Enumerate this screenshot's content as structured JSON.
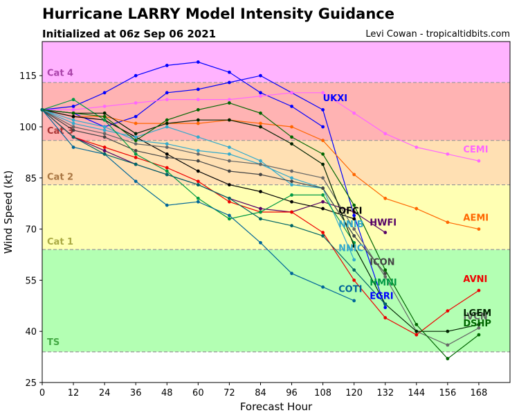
{
  "header": {
    "title": "Hurricane LARRY Model Intensity Guidance",
    "subtitle": "Initialized at 06z Sep 06 2021",
    "credit": "Levi Cowan - tropicaltidbits.com"
  },
  "chart_data": {
    "type": "line",
    "title": "Hurricane LARRY Model Intensity Guidance",
    "subtitle": "Initialized at 06z Sep 06 2021",
    "xlabel": "Forecast Hour",
    "ylabel": "Wind Speed (kt)",
    "xlim": [
      0,
      180
    ],
    "ylim": [
      25,
      125
    ],
    "xticks": [
      0,
      12,
      24,
      36,
      48,
      60,
      72,
      84,
      96,
      108,
      120,
      132,
      144,
      156,
      168
    ],
    "yticks": [
      25,
      40,
      55,
      70,
      85,
      100,
      115
    ],
    "grid": false,
    "legend": "none",
    "bands": [
      {
        "label": "TS",
        "min": 34,
        "max": 64,
        "color": "#b3ffb3",
        "label_color": "#44aa44",
        "label_y": 37
      },
      {
        "label": "Cat 1",
        "min": 64,
        "max": 83,
        "color": "#ffffb3",
        "label_color": "#aaaa44",
        "label_y": 66.5
      },
      {
        "label": "Cat 2",
        "min": 83,
        "max": 96,
        "color": "#ffe0b3",
        "label_color": "#aa7744",
        "label_y": 85.5
      },
      {
        "label": "Cat 3",
        "min": 96,
        "max": 113,
        "color": "#ffb3b3",
        "label_color": "#aa3333",
        "label_y": 99
      },
      {
        "label": "Cat 4",
        "min": 113,
        "max": 125,
        "color": "#ffb3ff",
        "label_color": "#aa44aa",
        "label_y": 116
      }
    ],
    "series": [
      {
        "name": "UKXI",
        "color": "#0000ff",
        "x": [
          0,
          12,
          24,
          36,
          48,
          60,
          72,
          84,
          96,
          108
        ],
        "y": [
          105,
          106,
          110,
          115,
          118,
          119,
          116,
          110,
          106,
          100
        ],
        "label_x": 108,
        "label_y": 107.5
      },
      {
        "name": "EGRI",
        "color": "#0000ff",
        "x": [
          0,
          12,
          24,
          36,
          48,
          60,
          72,
          84,
          96,
          108,
          120,
          132
        ],
        "y": [
          105,
          104,
          100,
          103,
          110,
          111,
          113,
          115,
          110,
          105,
          74,
          47
        ],
        "label_x": 126,
        "label_y": 49.5
      },
      {
        "name": "CEMI",
        "color": "#ff66ff",
        "x": [
          0,
          12,
          24,
          36,
          48,
          60,
          72,
          84,
          96,
          108,
          120,
          132,
          144,
          156,
          168
        ],
        "y": [
          105,
          105,
          106,
          107,
          108,
          108,
          108,
          109,
          110,
          110,
          104,
          98,
          94,
          92,
          90
        ],
        "label_x": 162,
        "label_y": 92.5
      },
      {
        "name": "AEMI",
        "color": "#ff6600",
        "x": [
          0,
          12,
          24,
          36,
          48,
          60,
          72,
          84,
          96,
          108,
          120,
          132,
          144,
          156,
          168
        ],
        "y": [
          105,
          103,
          103,
          101,
          101,
          101,
          102,
          101,
          100,
          96,
          86,
          79,
          76,
          72,
          70
        ],
        "label_x": 162,
        "label_y": 72.5
      },
      {
        "name": "HWFI",
        "color": "#550066",
        "x": [
          0,
          12,
          24,
          36,
          48,
          60,
          72,
          84,
          96,
          108,
          120,
          132
        ],
        "y": [
          105,
          97,
          93,
          89,
          86,
          83,
          79,
          76,
          75,
          78,
          75,
          69
        ],
        "label_x": 126,
        "label_y": 71
      },
      {
        "name": "AVNI",
        "color": "#ee0000",
        "x": [
          0,
          12,
          24,
          36,
          48,
          60,
          72,
          84,
          96,
          108,
          120,
          132,
          144,
          156,
          168
        ],
        "y": [
          105,
          97,
          94,
          91,
          88,
          84,
          78,
          75,
          75,
          69,
          55,
          44,
          39,
          46,
          52
        ],
        "label_x": 162,
        "label_y": 54.5
      },
      {
        "name": "OFCI",
        "color": "#000000",
        "x": [
          0,
          12,
          24,
          36,
          48,
          60,
          72,
          84,
          96,
          108,
          120
        ],
        "y": [
          105,
          103,
          102,
          97,
          92,
          87,
          83,
          81,
          78,
          76,
          73
        ],
        "label_x": 114,
        "label_y": 74.5
      },
      {
        "name": "NNIB",
        "color": "#33aacc",
        "x": [
          0,
          12,
          24,
          36,
          48,
          60,
          72,
          84,
          96,
          108,
          120
        ],
        "y": [
          105,
          102,
          100,
          96,
          95,
          93,
          92,
          89,
          85,
          82,
          68
        ],
        "label_x": 114,
        "label_y": 70.5
      },
      {
        "name": "NNIC",
        "color": "#33aacc",
        "x": [
          0,
          12,
          24,
          36,
          48,
          60,
          72,
          84,
          96,
          108,
          120
        ],
        "y": [
          105,
          101,
          99,
          97,
          100,
          97,
          94,
          90,
          83,
          82,
          61
        ],
        "label_x": 114,
        "label_y": 63.5
      },
      {
        "name": "ICON",
        "color": "#444444",
        "x": [
          0,
          12,
          24,
          36,
          48,
          60,
          72,
          84,
          96,
          108,
          120,
          132
        ],
        "y": [
          105,
          99,
          97,
          93,
          91,
          90,
          87,
          86,
          84,
          82,
          68,
          57
        ],
        "label_x": 126,
        "label_y": 59.5
      },
      {
        "name": "IVCN",
        "color": "#666666",
        "x": [
          0,
          12,
          24,
          36,
          48,
          60,
          72,
          84,
          96,
          108,
          120,
          132,
          144,
          156,
          168
        ],
        "y": [
          105,
          100,
          98,
          95,
          94,
          92,
          90,
          89,
          87,
          85,
          70,
          56,
          40,
          36,
          41
        ],
        "label_x": 162,
        "label_y": 43.5
      },
      {
        "name": "HMNI",
        "color": "#009944",
        "x": [
          0,
          12,
          24,
          36,
          48,
          60,
          72,
          84,
          96,
          108,
          120
        ],
        "y": [
          105,
          108,
          102,
          92,
          87,
          79,
          73,
          75,
          80,
          80,
          66
        ],
        "label_x": 126,
        "label_y": 53.5
      },
      {
        "name": "COTI",
        "color": "#006699",
        "x": [
          0,
          12,
          24,
          36,
          48,
          60,
          72,
          84,
          96,
          108,
          120
        ],
        "y": [
          105,
          94,
          92,
          84,
          77,
          78,
          74,
          66,
          57,
          53,
          49
        ],
        "label_x": 114,
        "label_y": 51.5
      },
      {
        "name": "LGEM",
        "color": "#002200",
        "x": [
          0,
          12,
          24,
          36,
          48,
          60,
          72,
          84,
          96,
          108,
          120,
          132,
          144,
          156,
          168
        ],
        "y": [
          105,
          104,
          104,
          98,
          101,
          102,
          102,
          100,
          95,
          89,
          65,
          48,
          40,
          40,
          42
        ],
        "label_x": 162,
        "label_y": 44.5
      },
      {
        "name": "DSHP",
        "color": "#006600",
        "x": [
          0,
          12,
          24,
          36,
          48,
          60,
          72,
          84,
          96,
          108,
          120,
          132,
          144,
          156,
          168
        ],
        "y": [
          105,
          104,
          103,
          96,
          102,
          105,
          107,
          104,
          97,
          92,
          77,
          58,
          42,
          32,
          39
        ],
        "label_x": 162,
        "label_y": 41.5
      },
      {
        "name": "",
        "color": "#006666",
        "x": [
          0,
          12,
          24,
          36,
          48,
          60,
          72,
          84,
          96,
          108,
          120,
          132
        ],
        "y": [
          105,
          97,
          92,
          89,
          86,
          83,
          79,
          73,
          71,
          68,
          58,
          48
        ],
        "label_x": null,
        "label_y": null
      }
    ]
  }
}
